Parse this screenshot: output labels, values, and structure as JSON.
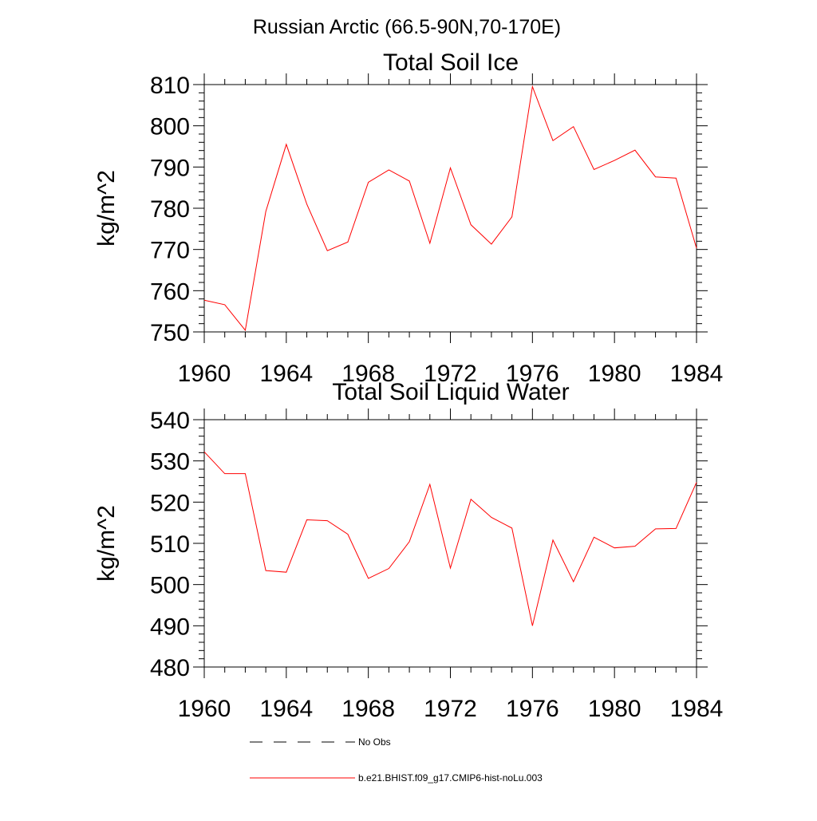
{
  "figure": {
    "title": "Russian Arctic (66.5-90N,70-170E)"
  },
  "chart_data": [
    {
      "type": "line",
      "title": "Total Soil Ice",
      "xlabel": "",
      "ylabel": "kg/m^2",
      "xlim": [
        1960,
        1984
      ],
      "ylim": [
        750,
        810
      ],
      "x_ticks": [
        "1960",
        "1964",
        "1968",
        "1972",
        "1976",
        "1980",
        "1984"
      ],
      "y_ticks": [
        "750",
        "760",
        "770",
        "780",
        "790",
        "800",
        "810"
      ],
      "grid": false,
      "x": [
        1960,
        1961,
        1962,
        1963,
        1964,
        1965,
        1966,
        1967,
        1968,
        1969,
        1970,
        1971,
        1972,
        1973,
        1974,
        1975,
        1976,
        1977,
        1978,
        1979,
        1980,
        1981,
        1982,
        1983,
        1984
      ],
      "series": [
        {
          "name": "b.e21.BHIST.f09_g17.CMIP6-hist-noLu.003",
          "color": "#ff0000",
          "values": [
            757.7,
            756.6,
            750.4,
            779.2,
            795.5,
            781.0,
            769.7,
            771.8,
            786.3,
            789.3,
            786.6,
            771.5,
            789.8,
            776.0,
            771.3,
            777.9,
            809.5,
            796.4,
            799.8,
            789.4,
            791.6,
            794.1,
            787.6,
            787.3,
            770.3
          ]
        }
      ]
    },
    {
      "type": "line",
      "title": "Total Soil Liquid Water",
      "xlabel": "",
      "ylabel": "kg/m^2",
      "xlim": [
        1960,
        1984
      ],
      "ylim": [
        480,
        540
      ],
      "x_ticks": [
        "1960",
        "1964",
        "1968",
        "1972",
        "1976",
        "1980",
        "1984"
      ],
      "y_ticks": [
        "480",
        "490",
        "500",
        "510",
        "520",
        "530",
        "540"
      ],
      "grid": false,
      "x": [
        1960,
        1961,
        1962,
        1963,
        1964,
        1965,
        1966,
        1967,
        1968,
        1969,
        1970,
        1971,
        1972,
        1973,
        1974,
        1975,
        1976,
        1977,
        1978,
        1979,
        1980,
        1981,
        1982,
        1983,
        1984
      ],
      "series": [
        {
          "name": "b.e21.BHIST.f09_g17.CMIP6-hist-noLu.003",
          "color": "#ff0000",
          "values": [
            532.2,
            526.9,
            526.9,
            503.4,
            503.0,
            515.7,
            515.5,
            512.2,
            501.5,
            503.9,
            510.4,
            524.3,
            504.0,
            520.7,
            516.3,
            513.7,
            490.0,
            510.8,
            500.7,
            511.5,
            508.9,
            509.3,
            513.5,
            513.6,
            524.8
          ]
        }
      ]
    }
  ],
  "legend": {
    "placement": "bottom",
    "items": [
      {
        "label": "No Obs",
        "color": "#000000",
        "dashed": true
      },
      {
        "label": "b.e21.BHIST.f09_g17.CMIP6-hist-noLu.003",
        "color": "#ff0000",
        "dashed": false
      }
    ]
  }
}
